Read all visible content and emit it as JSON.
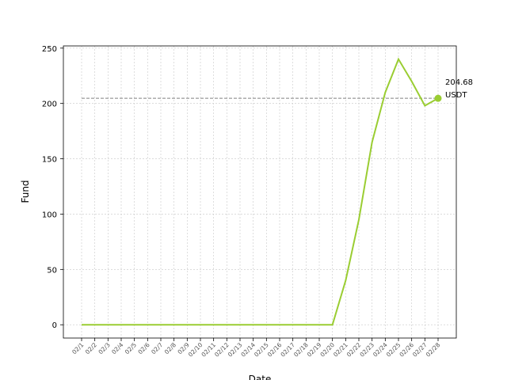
{
  "chart_data": {
    "type": "line",
    "xlabel": "Date",
    "ylabel": "Fund",
    "ylim": [
      -12,
      252
    ],
    "yticks": [
      0,
      50,
      100,
      150,
      200,
      250
    ],
    "grid": true,
    "categories": [
      "02/1",
      "02/2",
      "02/3",
      "02/4",
      "02/5",
      "02/6",
      "02/7",
      "02/8",
      "02/9",
      "02/10",
      "02/11",
      "02/12",
      "02/13",
      "02/14",
      "02/15",
      "02/16",
      "02/17",
      "02/18",
      "02/19",
      "02/20",
      "02/21",
      "02/22",
      "02/23",
      "02/24",
      "02/25",
      "02/26",
      "02/27",
      "02/28"
    ],
    "series": [
      {
        "values": [
          0,
          0,
          0,
          0,
          0,
          0,
          0,
          0,
          0,
          0,
          0,
          0,
          0,
          0,
          0,
          0,
          0,
          0,
          0,
          0,
          40,
          95,
          165,
          210,
          240,
          220,
          198,
          204.68
        ],
        "color": "#9acd32"
      }
    ],
    "reference_line": {
      "value": 204.68,
      "style": "dashed",
      "color": "#808080"
    },
    "annotation": {
      "line1": "204.68",
      "line2": "USDT"
    }
  }
}
